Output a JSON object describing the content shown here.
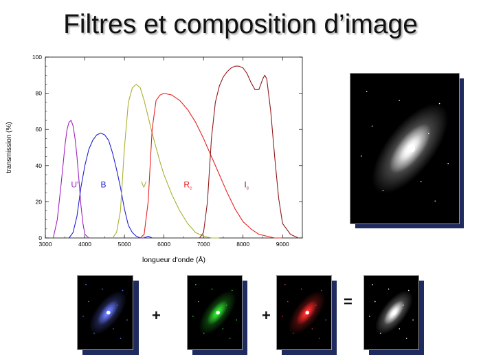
{
  "slide": {
    "title": "Filtres et composition d’image",
    "plus_1": "+",
    "plus_2": "+",
    "equals": "="
  },
  "colors": {
    "U": "#a020c0",
    "B": "#2020d0",
    "V": "#a8b030",
    "Rc": "#e82020",
    "Ic": "#901818"
  },
  "chart_data": {
    "type": "line",
    "xlabel": "longueur d'onde (Å)",
    "ylabel": "transmission (%)",
    "xlim": [
      3000,
      9500
    ],
    "ylim": [
      0,
      100
    ],
    "xticks": [
      3000,
      4000,
      5000,
      6000,
      7000,
      8000,
      9000
    ],
    "yticks": [
      0,
      20,
      40,
      60,
      80,
      100
    ],
    "grid": false,
    "series": [
      {
        "name": "U'",
        "name_main": "U'",
        "name_sub": "",
        "label_x": 3650,
        "label_y": 28,
        "x": [
          3200,
          3300,
          3400,
          3500,
          3550,
          3600,
          3650,
          3700,
          3750,
          3800,
          3850,
          3900,
          3950,
          4000,
          4100
        ],
        "y": [
          0,
          10,
          30,
          52,
          60,
          64,
          65,
          62,
          55,
          45,
          32,
          18,
          8,
          2,
          0
        ]
      },
      {
        "name": "B",
        "name_main": "B",
        "name_sub": "",
        "label_x": 4400,
        "label_y": 28,
        "x": [
          3600,
          3700,
          3800,
          3900,
          4000,
          4100,
          4200,
          4300,
          4400,
          4500,
          4600,
          4700,
          4800,
          4900,
          5000,
          5100,
          5200,
          5300,
          5400,
          5500,
          5600,
          5700
        ],
        "y": [
          0,
          3,
          12,
          28,
          40,
          49,
          54,
          57,
          58,
          57,
          54,
          47,
          38,
          28,
          16,
          7,
          3,
          1,
          0,
          0,
          1,
          0
        ]
      },
      {
        "name": "V",
        "name_main": "V",
        "name_sub": "",
        "label_x": 5420,
        "label_y": 28,
        "x": [
          4700,
          4800,
          4900,
          5000,
          5100,
          5200,
          5300,
          5400,
          5500,
          5600,
          5700,
          5800,
          5900,
          6000,
          6200,
          6400,
          6600,
          6800,
          7000,
          7200,
          7400
        ],
        "y": [
          0,
          3,
          15,
          50,
          75,
          83,
          85,
          83,
          76,
          67,
          58,
          50,
          42,
          35,
          24,
          15,
          8,
          3,
          1,
          0,
          0
        ]
      },
      {
        "name": "Rc",
        "name_main": "R",
        "name_sub": "c",
        "label_x": 6500,
        "label_y": 28,
        "x": [
          5400,
          5500,
          5600,
          5700,
          5800,
          5900,
          6000,
          6200,
          6400,
          6600,
          6800,
          7000,
          7200,
          7400,
          7600,
          7800,
          8000,
          8200,
          8400,
          8600,
          8800,
          9000
        ],
        "y": [
          0,
          2,
          20,
          60,
          76,
          79,
          80,
          79,
          76,
          71,
          64,
          55,
          45,
          35,
          25,
          16,
          9,
          5,
          2,
          1,
          0,
          0
        ]
      },
      {
        "name": "Ic",
        "name_main": "I",
        "name_sub": "c",
        "label_x": 8030,
        "label_y": 28,
        "x": [
          6900,
          7000,
          7100,
          7200,
          7300,
          7400,
          7500,
          7600,
          7700,
          7800,
          7900,
          8000,
          8100,
          8200,
          8300,
          8400,
          8500,
          8550,
          8600,
          8700,
          8800,
          8900,
          9000,
          9200,
          9400
        ],
        "y": [
          0,
          3,
          20,
          55,
          75,
          84,
          89,
          92,
          94,
          95,
          95,
          94,
          91,
          86,
          82,
          82,
          88,
          90,
          88,
          70,
          45,
          22,
          8,
          2,
          0
        ]
      }
    ]
  },
  "images": [
    {
      "name": "galaxy-composite-large",
      "tint": "#ffffff"
    },
    {
      "name": "galaxy-blue-filter",
      "tint": "#6a7aff"
    },
    {
      "name": "galaxy-green-filter",
      "tint": "#30e030"
    },
    {
      "name": "galaxy-red-filter",
      "tint": "#ff2a2a"
    },
    {
      "name": "galaxy-composite-small",
      "tint": "#ffffff"
    }
  ]
}
